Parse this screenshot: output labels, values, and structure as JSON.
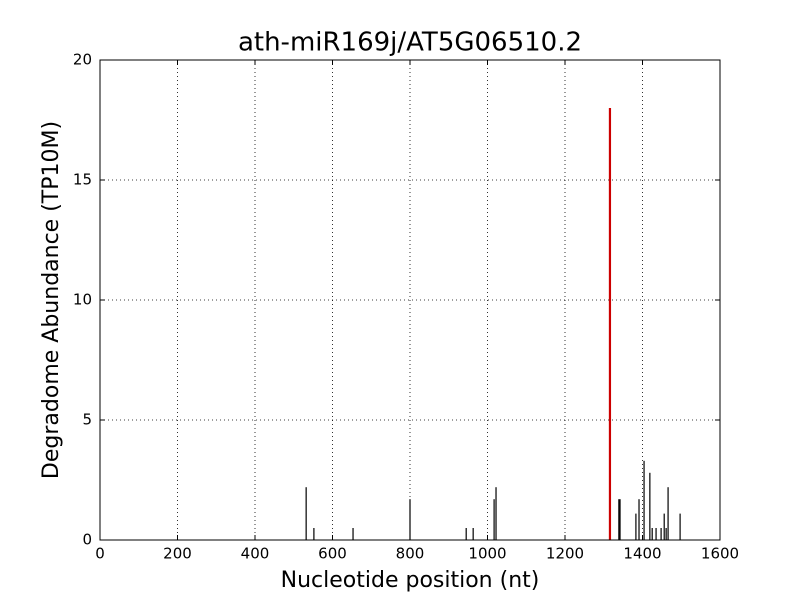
{
  "chart_data": {
    "type": "vlines",
    "title": "ath-miR169j/AT5G06510.2",
    "xlabel": "Nucleotide position (nt)",
    "ylabel": "Degradome Abundance (TP10M)",
    "series": [
      {
        "color": "#000000",
        "x": [
          532,
          552,
          653,
          800,
          945,
          963,
          1017,
          1022,
          1339,
          1342,
          1383,
          1391,
          1404,
          1419,
          1425,
          1435,
          1448,
          1456,
          1461,
          1466,
          1497
        ],
        "values": [
          2.2,
          0.5,
          0.5,
          1.7,
          0.5,
          0.5,
          1.7,
          2.2,
          1.7,
          1.7,
          1.1,
          1.7,
          3.3,
          2.8,
          0.5,
          0.5,
          0.5,
          1.1,
          0.5,
          2.2,
          1.1
        ]
      },
      {
        "color": "#cc0000",
        "x": [
          1316
        ],
        "values": [
          18
        ]
      }
    ],
    "xlim": [
      0,
      1600
    ],
    "xticks": [
      0,
      200,
      400,
      600,
      800,
      1000,
      1200,
      1400,
      1600
    ],
    "ylim": [
      0,
      20
    ],
    "yticks": [
      0,
      5,
      10,
      15,
      20
    ],
    "grid": true
  }
}
